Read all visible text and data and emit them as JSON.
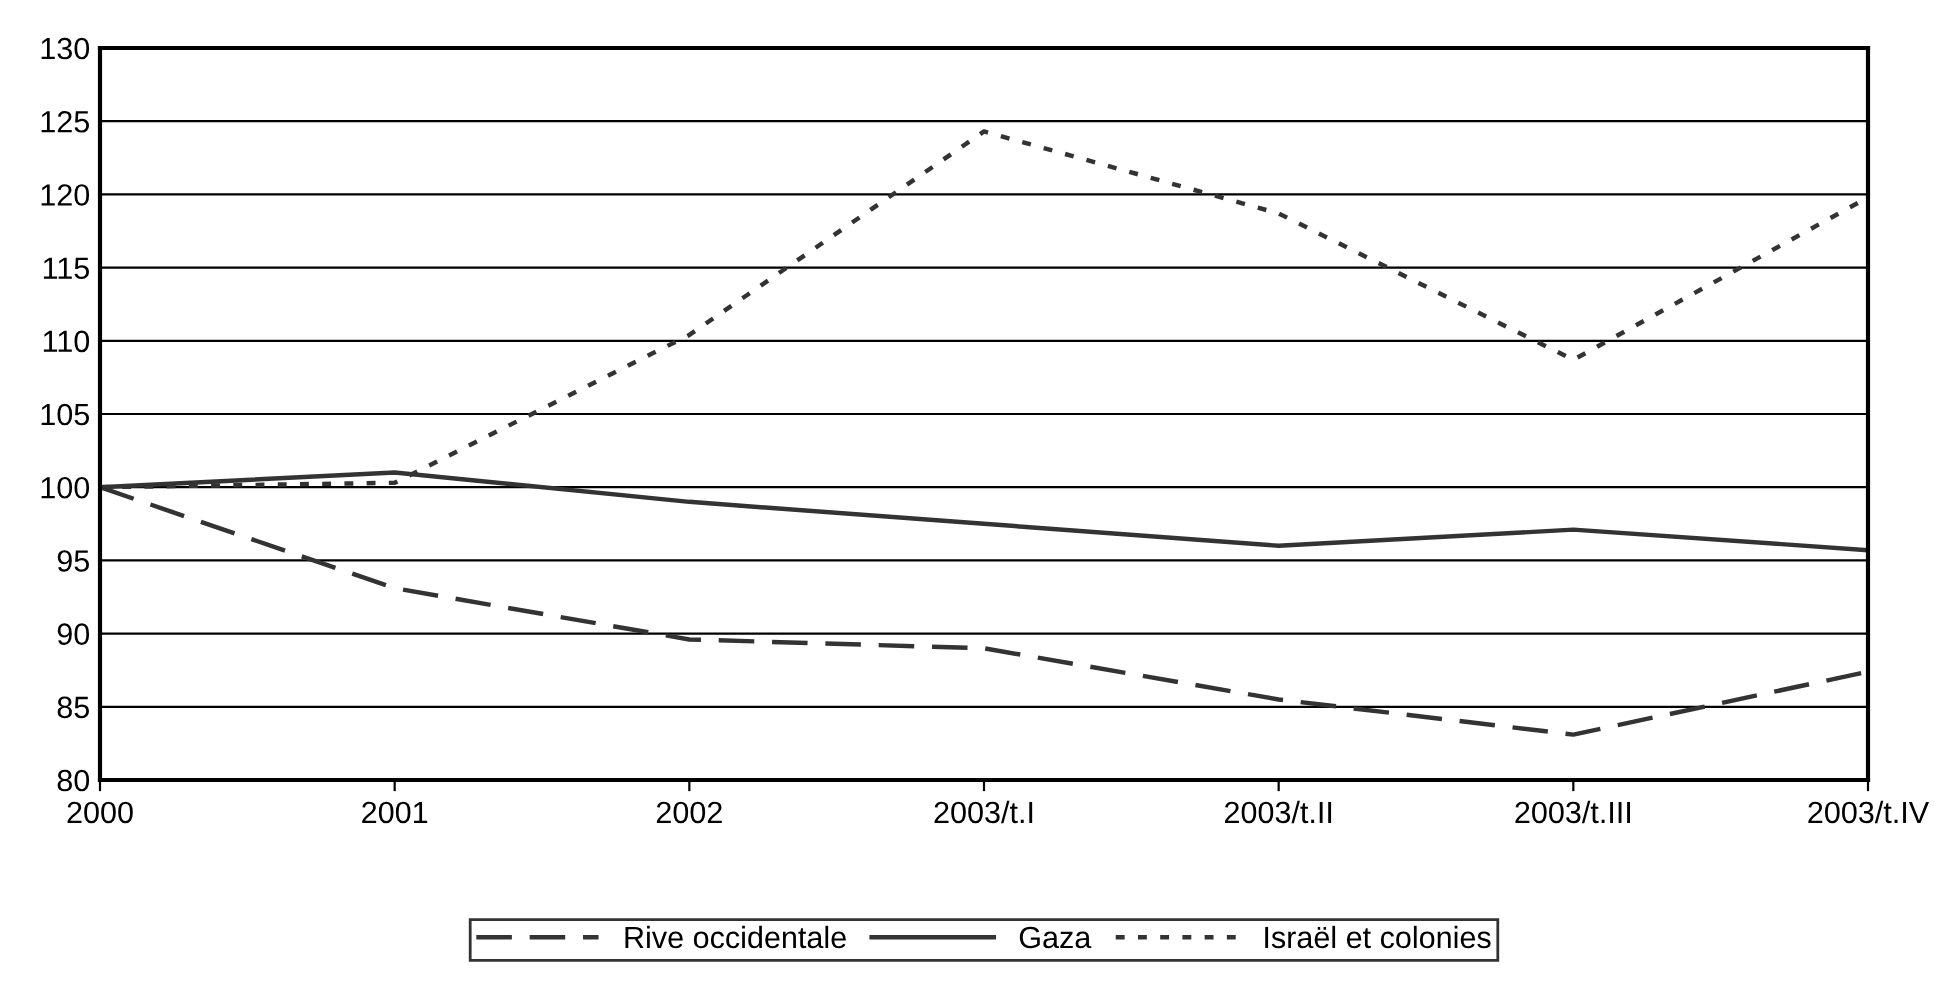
{
  "chart_data": {
    "type": "line",
    "categories": [
      "2000",
      "2001",
      "2002",
      "2003/t.I",
      "2003/t.II",
      "2003/t.III",
      "2003/t.IV"
    ],
    "series": [
      {
        "name": "Rive occidentale",
        "color": "#333333",
        "line_style": "dashed",
        "values": [
          100,
          93.1,
          89.6,
          89.0,
          85.5,
          83.1,
          87.4
        ]
      },
      {
        "name": "Gaza",
        "color": "#333333",
        "line_style": "solid",
        "values": [
          100,
          101,
          99,
          97.5,
          96,
          97.1,
          95.7
        ]
      },
      {
        "name": "Israël et colonies",
        "color": "#333333",
        "line_style": "dotted",
        "values": [
          100,
          100.3,
          110.4,
          124.3,
          118.7,
          108.7,
          119.8
        ]
      }
    ],
    "ylim": [
      80,
      130
    ],
    "yticks": [
      80,
      85,
      90,
      95,
      100,
      105,
      110,
      115,
      120,
      125,
      130
    ],
    "grid": "y",
    "legend": "bottom",
    "marker": "none"
  }
}
